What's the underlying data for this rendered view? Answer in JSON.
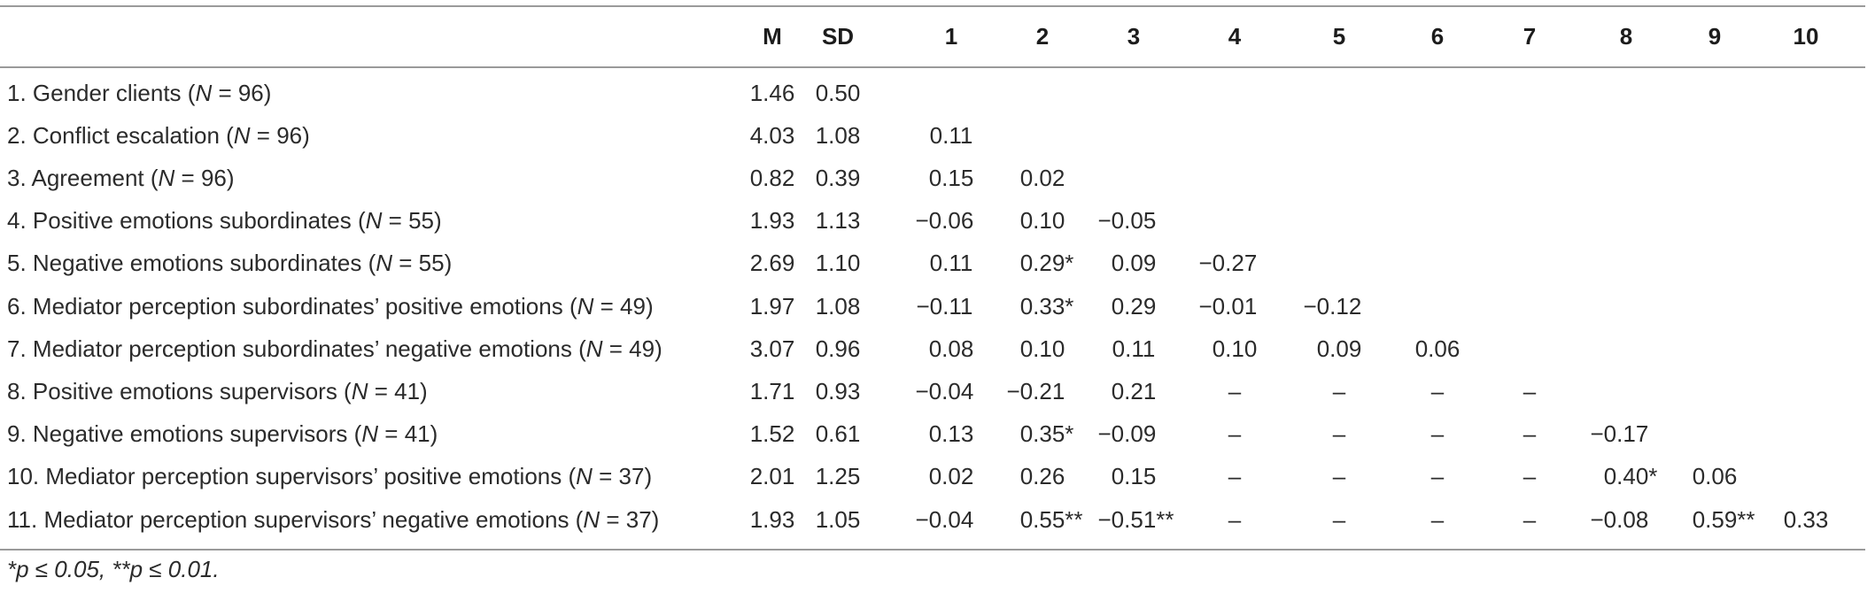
{
  "headers": [
    "M",
    "SD",
    "1",
    "2",
    "3",
    "4",
    "5",
    "6",
    "7",
    "8",
    "9",
    "10"
  ],
  "rows": [
    {
      "label_pre": "1. Gender clients (",
      "n_var": "N",
      "label_post": " = 96)",
      "cells": [
        "1.46",
        "0.50",
        "",
        "",
        "",
        "",
        "",
        "",
        "",
        "",
        "",
        ""
      ]
    },
    {
      "label_pre": "2. Conflict escalation (",
      "n_var": "N",
      "label_post": " = 96)",
      "cells": [
        "4.03",
        "1.08",
        "0.11",
        "",
        "",
        "",
        "",
        "",
        "",
        "",
        "",
        ""
      ]
    },
    {
      "label_pre": "3. Agreement (",
      "n_var": "N",
      "label_post": " = 96)",
      "cells": [
        "0.82",
        "0.39",
        "0.15",
        "0.02",
        "",
        "",
        "",
        "",
        "",
        "",
        "",
        ""
      ]
    },
    {
      "label_pre": "4. Positive emotions subordinates (",
      "n_var": "N",
      "label_post": " = 55)",
      "cells": [
        "1.93",
        "1.13",
        "−0.06",
        "0.10",
        "−0.05",
        "",
        "",
        "",
        "",
        "",
        "",
        ""
      ]
    },
    {
      "label_pre": "5. Negative emotions subordinates (",
      "n_var": "N",
      "label_post": " = 55)",
      "cells": [
        "2.69",
        "1.10",
        "0.11",
        "0.29*",
        "0.09",
        "−0.27",
        "",
        "",
        "",
        "",
        "",
        ""
      ]
    },
    {
      "label_pre": "6. Mediator perception subordinates’ positive emotions (",
      "n_var": "N",
      "label_post": " = 49)",
      "cells": [
        "1.97",
        "1.08",
        "−0.11",
        "0.33*",
        "0.29",
        "−0.01",
        "−0.12",
        "",
        "",
        "",
        "",
        ""
      ]
    },
    {
      "label_pre": "7. Mediator perception subordinates’ negative emotions (",
      "n_var": "N",
      "label_post": " = 49)",
      "cells": [
        "3.07",
        "0.96",
        "0.08",
        "0.10",
        "0.11",
        "0.10",
        "0.09",
        "0.06",
        "",
        "",
        "",
        ""
      ]
    },
    {
      "label_pre": "8. Positive emotions supervisors (",
      "n_var": "N",
      "label_post": " = 41)",
      "cells": [
        "1.71",
        "0.93",
        "−0.04",
        "−0.21",
        "0.21",
        "–",
        "–",
        "–",
        "–",
        "",
        "",
        ""
      ]
    },
    {
      "label_pre": "9. Negative emotions supervisors (",
      "n_var": "N",
      "label_post": " = 41)",
      "cells": [
        "1.52",
        "0.61",
        "0.13",
        "0.35*",
        "−0.09",
        "–",
        "–",
        "–",
        "–",
        "−0.17",
        "",
        ""
      ]
    },
    {
      "label_pre": "10. Mediator perception supervisors’ positive emotions (",
      "n_var": "N",
      "label_post": " = 37)",
      "cells": [
        "2.01",
        "1.25",
        "0.02",
        "0.26",
        "0.15",
        "–",
        "–",
        "–",
        "–",
        "0.40*",
        "0.06",
        ""
      ]
    },
    {
      "label_pre": "11. Mediator perception supervisors’ negative emotions (",
      "n_var": "N",
      "label_post": " = 37)",
      "cells": [
        "1.93",
        "1.05",
        "−0.04",
        "0.55**",
        "−0.51**",
        "–",
        "–",
        "–",
        "–",
        "−0.08",
        "0.59**",
        "0.33"
      ]
    }
  ],
  "footnote": "*p ≤ 0.05, **p ≤ 0.01."
}
